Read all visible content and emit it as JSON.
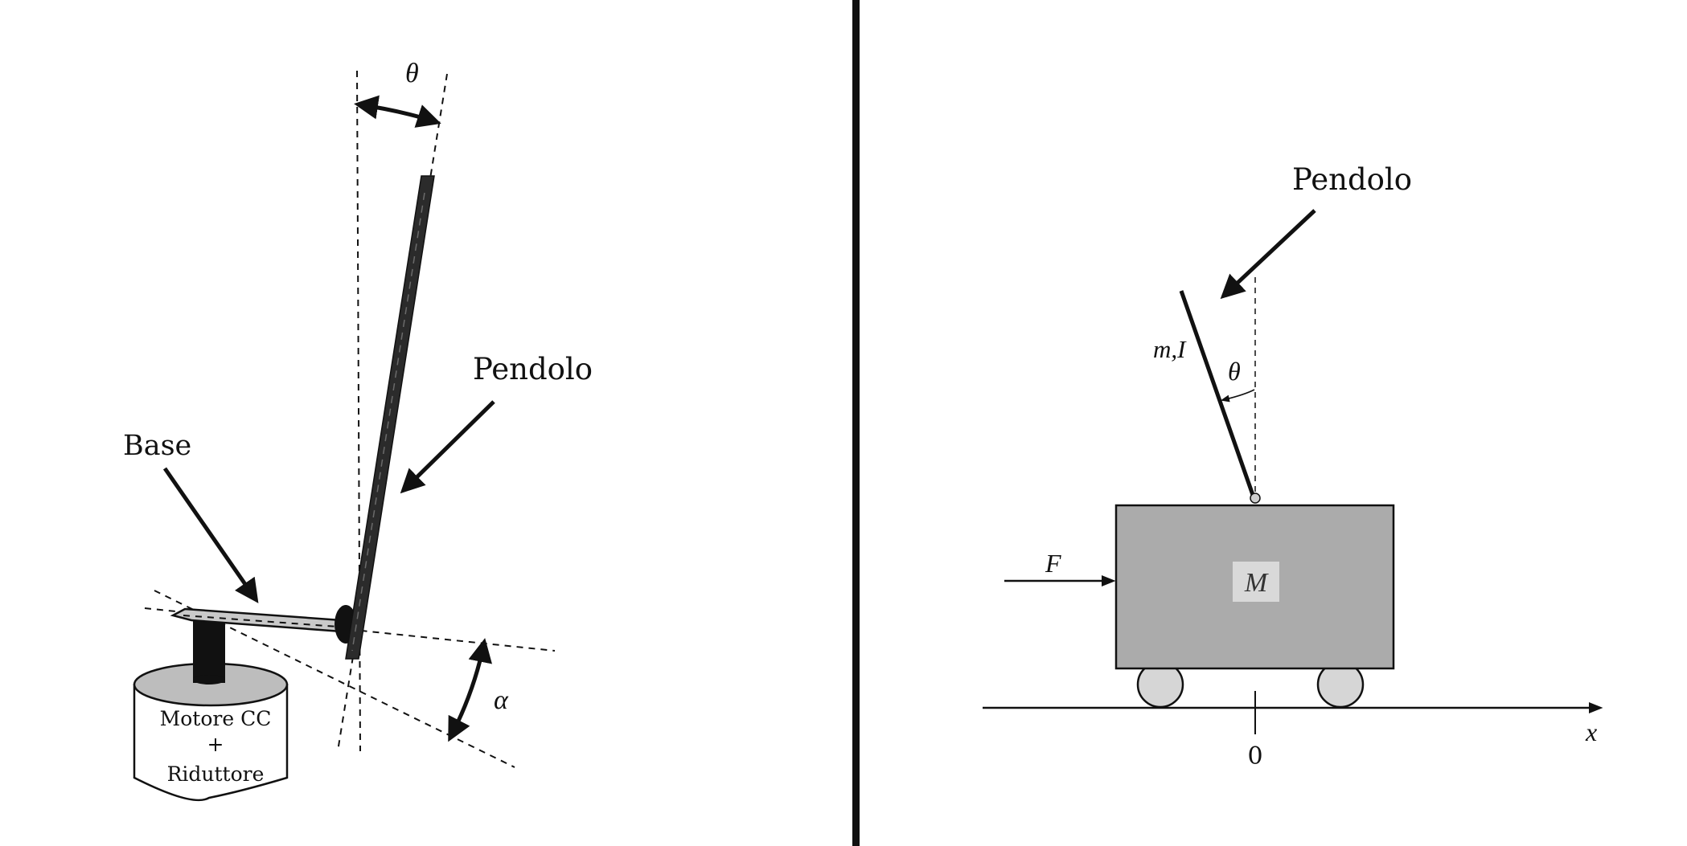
{
  "left_panel": {
    "theta_label": "θ",
    "pendulum_label": "Pendolo",
    "base_label": "Base",
    "alpha_label": "α",
    "motor_label_line1": "Motore CC",
    "motor_label_line2": "+",
    "motor_label_line3": "Riduttore"
  },
  "right_panel": {
    "pendulum_label": "Pendolo",
    "mass_inertia_label": "m,I",
    "theta_label": "θ",
    "force_label": "F",
    "cart_mass_label": "M",
    "axis_label": "x",
    "origin_label": "0"
  },
  "colors": {
    "ink": "#111111",
    "cart_fill": "#ababab",
    "wheel_fill": "#d6d6d6",
    "cart_label_bg": "#d9d9d9",
    "motor_top": "#bdbdbd",
    "pendulum_rod": "#2b2b2b"
  }
}
